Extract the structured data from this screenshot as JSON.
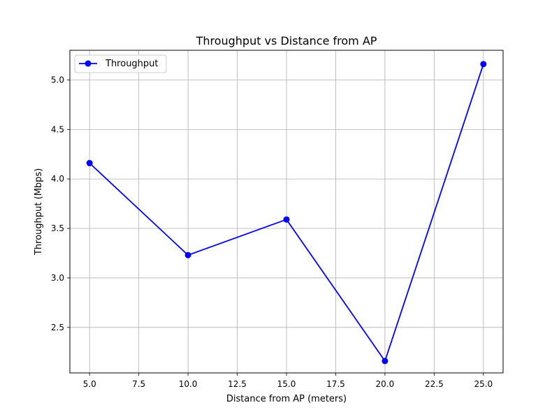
{
  "chart_data": {
    "type": "line",
    "title": "Throughput vs Distance from AP",
    "xlabel": "Distance from AP (meters)",
    "ylabel": "Throughput (Mbps)",
    "xlim": [
      4.0,
      26.0
    ],
    "ylim": [
      2.04,
      5.3
    ],
    "xticks": [
      5.0,
      7.5,
      10.0,
      12.5,
      15.0,
      17.5,
      20.0,
      22.5,
      25.0
    ],
    "xtick_labels": [
      "5.0",
      "7.5",
      "10.0",
      "12.5",
      "15.0",
      "17.5",
      "20.0",
      "22.5",
      "25.0"
    ],
    "yticks": [
      2.5,
      3.0,
      3.5,
      4.0,
      4.5,
      5.0
    ],
    "ytick_labels": [
      "2.5",
      "3.0",
      "3.5",
      "4.0",
      "4.5",
      "5.0"
    ],
    "grid": true,
    "legend_position": "top-left",
    "series": [
      {
        "name": "Throughput",
        "color": "#0000ff",
        "marker": "circle",
        "x": [
          5,
          10,
          15,
          20,
          25
        ],
        "y": [
          4.16,
          3.23,
          3.59,
          2.16,
          5.16
        ]
      }
    ]
  }
}
